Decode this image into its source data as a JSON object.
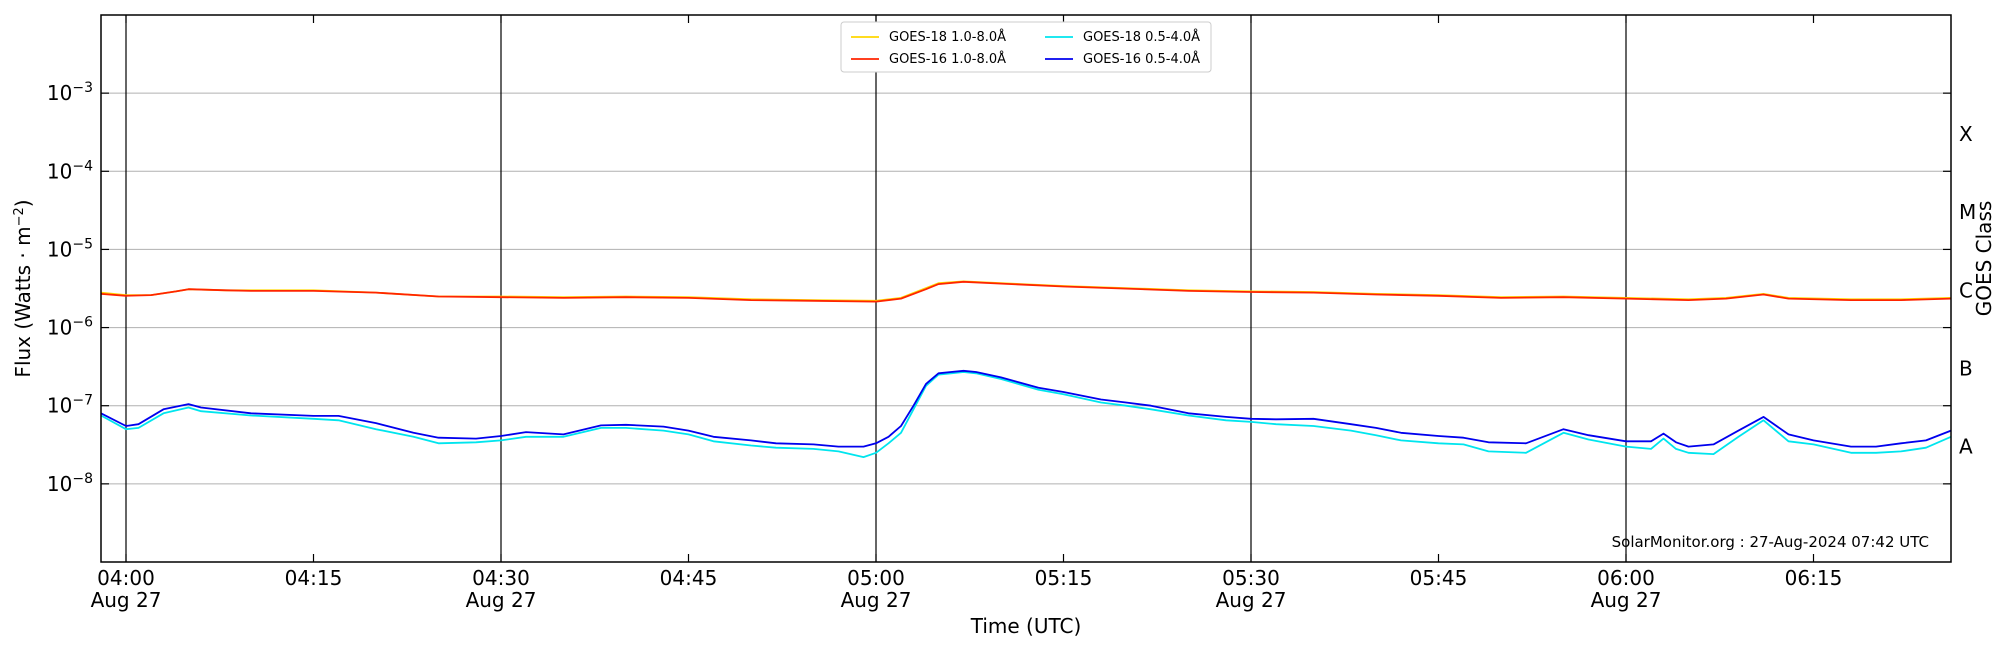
{
  "chart_data": {
    "type": "line",
    "xlabel": "Time (UTC)",
    "ylabel_main": "Flux (Watts · m",
    "ylabel_exp": "−2",
    "ylabel_close": ")",
    "y2label": "GOES Class",
    "yscale": "log",
    "ylim": [
      1e-09,
      0.01
    ],
    "xlim": [
      "03:58",
      "06:26"
    ],
    "grid": "horizontal at each decade",
    "legend_position": "top-center",
    "x_ticks": [
      {
        "time": "04:00",
        "label": "04:00",
        "date": "Aug 27"
      },
      {
        "time": "04:15",
        "label": "04:15",
        "date": ""
      },
      {
        "time": "04:30",
        "label": "04:30",
        "date": "Aug 27"
      },
      {
        "time": "04:45",
        "label": "04:45",
        "date": ""
      },
      {
        "time": "05:00",
        "label": "05:00",
        "date": "Aug 27"
      },
      {
        "time": "05:15",
        "label": "05:15",
        "date": ""
      },
      {
        "time": "05:30",
        "label": "05:30",
        "date": "Aug 27"
      },
      {
        "time": "05:45",
        "label": "05:45",
        "date": ""
      },
      {
        "time": "06:00",
        "label": "06:00",
        "date": "Aug 27"
      },
      {
        "time": "06:15",
        "label": "06:15",
        "date": ""
      }
    ],
    "vertical_lines": [
      "04:00",
      "04:30",
      "05:00",
      "05:30",
      "06:00"
    ],
    "y_ticks": [
      {
        "value": 1e-08,
        "base": "10",
        "exp": "−8"
      },
      {
        "value": 1e-07,
        "base": "10",
        "exp": "−7"
      },
      {
        "value": 1e-06,
        "base": "10",
        "exp": "−6"
      },
      {
        "value": 1e-05,
        "base": "10",
        "exp": "−5"
      },
      {
        "value": 0.0001,
        "base": "10",
        "exp": "−4"
      },
      {
        "value": 0.001,
        "base": "10",
        "exp": "−3"
      }
    ],
    "goes_classes": [
      {
        "label": "X",
        "value": 0.0003
      },
      {
        "label": "M",
        "value": 3e-05
      },
      {
        "label": "C",
        "value": 3e-06
      },
      {
        "label": "B",
        "value": 3e-07
      },
      {
        "label": "A",
        "value": 3e-08
      }
    ],
    "credit": "SolarMonitor.org : 27-Aug-2024 07:42 UTC",
    "series": [
      {
        "name": "GOES-18 1.0-8.0Å",
        "color": "#ffd700",
        "points": [
          [
            "03:58",
            2.8e-06
          ],
          [
            "04:00",
            2.6e-06
          ],
          [
            "04:02",
            2.6e-06
          ],
          [
            "04:04",
            2.9e-06
          ],
          [
            "04:05",
            3.1e-06
          ],
          [
            "04:08",
            3e-06
          ],
          [
            "04:10",
            3e-06
          ],
          [
            "04:15",
            3e-06
          ],
          [
            "04:20",
            2.8e-06
          ],
          [
            "04:25",
            2.5e-06
          ],
          [
            "04:30",
            2.5e-06
          ],
          [
            "04:35",
            2.45e-06
          ],
          [
            "04:40",
            2.5e-06
          ],
          [
            "04:45",
            2.45e-06
          ],
          [
            "04:50",
            2.3e-06
          ],
          [
            "04:55",
            2.25e-06
          ],
          [
            "05:00",
            2.2e-06
          ],
          [
            "05:02",
            2.4e-06
          ],
          [
            "05:04",
            3.2e-06
          ],
          [
            "05:05",
            3.7e-06
          ],
          [
            "05:07",
            3.9e-06
          ],
          [
            "05:10",
            3.7e-06
          ],
          [
            "05:15",
            3.4e-06
          ],
          [
            "05:20",
            3.2e-06
          ],
          [
            "05:25",
            3e-06
          ],
          [
            "05:30",
            2.9e-06
          ],
          [
            "05:35",
            2.85e-06
          ],
          [
            "05:40",
            2.7e-06
          ],
          [
            "05:45",
            2.6e-06
          ],
          [
            "05:50",
            2.45e-06
          ],
          [
            "05:55",
            2.5e-06
          ],
          [
            "06:00",
            2.4e-06
          ],
          [
            "06:05",
            2.3e-06
          ],
          [
            "06:08",
            2.4e-06
          ],
          [
            "06:11",
            2.7e-06
          ],
          [
            "06:13",
            2.4e-06
          ],
          [
            "06:18",
            2.3e-06
          ],
          [
            "06:22",
            2.3e-06
          ],
          [
            "06:26",
            2.4e-06
          ]
        ]
      },
      {
        "name": "GOES-16 1.0-8.0Å",
        "color": "#ff2400",
        "points": [
          [
            "03:58",
            2.7e-06
          ],
          [
            "04:00",
            2.55e-06
          ],
          [
            "04:02",
            2.6e-06
          ],
          [
            "04:04",
            2.9e-06
          ],
          [
            "04:05",
            3.1e-06
          ],
          [
            "04:08",
            3e-06
          ],
          [
            "04:10",
            2.95e-06
          ],
          [
            "04:15",
            2.95e-06
          ],
          [
            "04:20",
            2.8e-06
          ],
          [
            "04:25",
            2.5e-06
          ],
          [
            "04:30",
            2.45e-06
          ],
          [
            "04:35",
            2.4e-06
          ],
          [
            "04:40",
            2.45e-06
          ],
          [
            "04:45",
            2.4e-06
          ],
          [
            "04:50",
            2.25e-06
          ],
          [
            "04:55",
            2.2e-06
          ],
          [
            "05:00",
            2.15e-06
          ],
          [
            "05:02",
            2.35e-06
          ],
          [
            "05:04",
            3.1e-06
          ],
          [
            "05:05",
            3.6e-06
          ],
          [
            "05:07",
            3.85e-06
          ],
          [
            "05:10",
            3.65e-06
          ],
          [
            "05:15",
            3.35e-06
          ],
          [
            "05:20",
            3.15e-06
          ],
          [
            "05:25",
            2.95e-06
          ],
          [
            "05:30",
            2.85e-06
          ],
          [
            "05:35",
            2.8e-06
          ],
          [
            "05:40",
            2.65e-06
          ],
          [
            "05:45",
            2.55e-06
          ],
          [
            "05:50",
            2.4e-06
          ],
          [
            "05:55",
            2.45e-06
          ],
          [
            "06:00",
            2.35e-06
          ],
          [
            "06:05",
            2.25e-06
          ],
          [
            "06:08",
            2.35e-06
          ],
          [
            "06:11",
            2.65e-06
          ],
          [
            "06:13",
            2.35e-06
          ],
          [
            "06:18",
            2.25e-06
          ],
          [
            "06:22",
            2.25e-06
          ],
          [
            "06:26",
            2.35e-06
          ]
        ]
      },
      {
        "name": "GOES-18 0.5-4.0Å",
        "color": "#00e5ee",
        "points": [
          [
            "03:58",
            7.5e-08
          ],
          [
            "04:00",
            5e-08
          ],
          [
            "04:01",
            5.2e-08
          ],
          [
            "04:03",
            8e-08
          ],
          [
            "04:05",
            9.5e-08
          ],
          [
            "04:06",
            8.5e-08
          ],
          [
            "04:10",
            7.5e-08
          ],
          [
            "04:15",
            6.8e-08
          ],
          [
            "04:17",
            6.5e-08
          ],
          [
            "04:20",
            5e-08
          ],
          [
            "04:23",
            4e-08
          ],
          [
            "04:25",
            3.3e-08
          ],
          [
            "04:28",
            3.4e-08
          ],
          [
            "04:30",
            3.6e-08
          ],
          [
            "04:32",
            4e-08
          ],
          [
            "04:35",
            4e-08
          ],
          [
            "04:38",
            5.2e-08
          ],
          [
            "04:40",
            5.2e-08
          ],
          [
            "04:43",
            4.8e-08
          ],
          [
            "04:45",
            4.3e-08
          ],
          [
            "04:47",
            3.5e-08
          ],
          [
            "04:50",
            3.1e-08
          ],
          [
            "04:52",
            2.9e-08
          ],
          [
            "04:55",
            2.8e-08
          ],
          [
            "04:57",
            2.6e-08
          ],
          [
            "04:59",
            2.2e-08
          ],
          [
            "05:00",
            2.5e-08
          ],
          [
            "05:01",
            3.3e-08
          ],
          [
            "05:02",
            4.5e-08
          ],
          [
            "05:03",
            9e-08
          ],
          [
            "05:04",
            1.8e-07
          ],
          [
            "05:05",
            2.5e-07
          ],
          [
            "05:06",
            2.6e-07
          ],
          [
            "05:07",
            2.7e-07
          ],
          [
            "05:08",
            2.6e-07
          ],
          [
            "05:10",
            2.2e-07
          ],
          [
            "05:13",
            1.6e-07
          ],
          [
            "05:15",
            1.4e-07
          ],
          [
            "05:18",
            1.1e-07
          ],
          [
            "05:20",
            1e-07
          ],
          [
            "05:22",
            9e-08
          ],
          [
            "05:25",
            7.5e-08
          ],
          [
            "05:28",
            6.5e-08
          ],
          [
            "05:30",
            6.2e-08
          ],
          [
            "05:32",
            5.8e-08
          ],
          [
            "05:35",
            5.5e-08
          ],
          [
            "05:38",
            4.8e-08
          ],
          [
            "05:40",
            4.2e-08
          ],
          [
            "05:42",
            3.6e-08
          ],
          [
            "05:45",
            3.3e-08
          ],
          [
            "05:47",
            3.2e-08
          ],
          [
            "05:49",
            2.6e-08
          ],
          [
            "05:52",
            2.5e-08
          ],
          [
            "05:55",
            4.5e-08
          ],
          [
            "05:57",
            3.7e-08
          ],
          [
            "06:00",
            3e-08
          ],
          [
            "06:02",
            2.8e-08
          ],
          [
            "06:03",
            3.8e-08
          ],
          [
            "06:04",
            2.8e-08
          ],
          [
            "06:05",
            2.5e-08
          ],
          [
            "06:07",
            2.4e-08
          ],
          [
            "06:09",
            4e-08
          ],
          [
            "06:11",
            6.5e-08
          ],
          [
            "06:13",
            3.5e-08
          ],
          [
            "06:15",
            3.2e-08
          ],
          [
            "06:18",
            2.5e-08
          ],
          [
            "06:20",
            2.5e-08
          ],
          [
            "06:22",
            2.6e-08
          ],
          [
            "06:24",
            2.9e-08
          ],
          [
            "06:26",
            4e-08
          ]
        ]
      },
      {
        "name": "GOES-16 0.5-4.0Å",
        "color": "#0000ee",
        "points": [
          [
            "03:58",
            8e-08
          ],
          [
            "04:00",
            5.5e-08
          ],
          [
            "04:01",
            5.8e-08
          ],
          [
            "04:03",
            9e-08
          ],
          [
            "04:05",
            1.05e-07
          ],
          [
            "04:06",
            9.5e-08
          ],
          [
            "04:10",
            8e-08
          ],
          [
            "04:15",
            7.4e-08
          ],
          [
            "04:17",
            7.4e-08
          ],
          [
            "04:20",
            6e-08
          ],
          [
            "04:23",
            4.5e-08
          ],
          [
            "04:25",
            3.9e-08
          ],
          [
            "04:28",
            3.8e-08
          ],
          [
            "04:30",
            4.1e-08
          ],
          [
            "04:32",
            4.6e-08
          ],
          [
            "04:35",
            4.3e-08
          ],
          [
            "04:38",
            5.6e-08
          ],
          [
            "04:40",
            5.7e-08
          ],
          [
            "04:43",
            5.4e-08
          ],
          [
            "04:45",
            4.8e-08
          ],
          [
            "04:47",
            4e-08
          ],
          [
            "04:50",
            3.6e-08
          ],
          [
            "04:52",
            3.3e-08
          ],
          [
            "04:55",
            3.2e-08
          ],
          [
            "04:57",
            3e-08
          ],
          [
            "04:59",
            3e-08
          ],
          [
            "05:00",
            3.3e-08
          ],
          [
            "05:01",
            4e-08
          ],
          [
            "05:02",
            5.5e-08
          ],
          [
            "05:03",
            1e-07
          ],
          [
            "05:04",
            1.9e-07
          ],
          [
            "05:05",
            2.6e-07
          ],
          [
            "05:06",
            2.7e-07
          ],
          [
            "05:07",
            2.8e-07
          ],
          [
            "05:08",
            2.7e-07
          ],
          [
            "05:10",
            2.3e-07
          ],
          [
            "05:13",
            1.7e-07
          ],
          [
            "05:15",
            1.5e-07
          ],
          [
            "05:18",
            1.2e-07
          ],
          [
            "05:20",
            1.1e-07
          ],
          [
            "05:22",
            1e-07
          ],
          [
            "05:25",
            8e-08
          ],
          [
            "05:28",
            7.2e-08
          ],
          [
            "05:30",
            6.8e-08
          ],
          [
            "05:32",
            6.7e-08
          ],
          [
            "05:35",
            6.8e-08
          ],
          [
            "05:38",
            5.8e-08
          ],
          [
            "05:40",
            5.2e-08
          ],
          [
            "05:42",
            4.5e-08
          ],
          [
            "05:45",
            4.1e-08
          ],
          [
            "05:47",
            3.9e-08
          ],
          [
            "05:49",
            3.4e-08
          ],
          [
            "05:52",
            3.3e-08
          ],
          [
            "05:55",
            5e-08
          ],
          [
            "05:57",
            4.2e-08
          ],
          [
            "06:00",
            3.5e-08
          ],
          [
            "06:02",
            3.5e-08
          ],
          [
            "06:03",
            4.4e-08
          ],
          [
            "06:04",
            3.4e-08
          ],
          [
            "06:05",
            3e-08
          ],
          [
            "06:07",
            3.2e-08
          ],
          [
            "06:09",
            4.8e-08
          ],
          [
            "06:11",
            7.2e-08
          ],
          [
            "06:13",
            4.3e-08
          ],
          [
            "06:15",
            3.6e-08
          ],
          [
            "06:18",
            3e-08
          ],
          [
            "06:20",
            3e-08
          ],
          [
            "06:22",
            3.3e-08
          ],
          [
            "06:24",
            3.6e-08
          ],
          [
            "06:26",
            4.8e-08
          ]
        ]
      }
    ]
  }
}
